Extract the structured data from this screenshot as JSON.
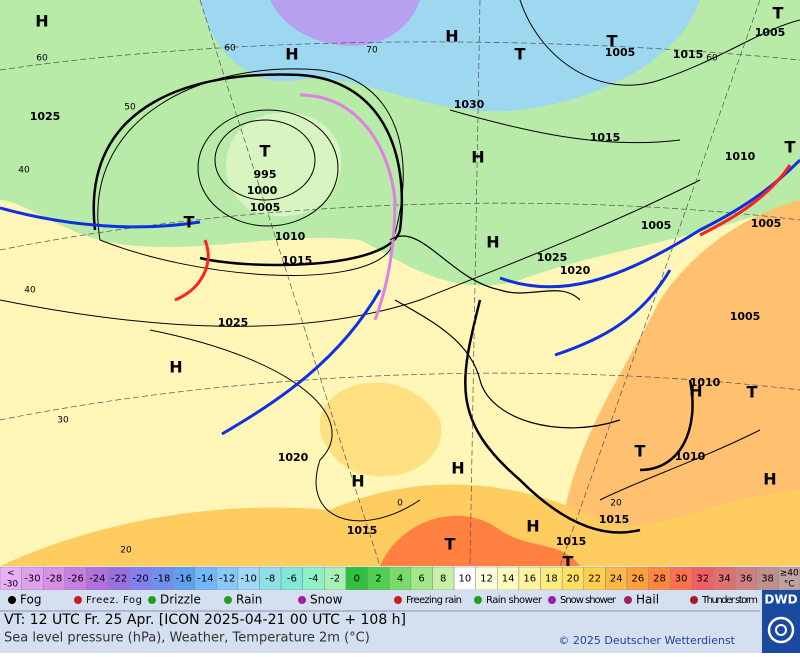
{
  "map": {
    "isobar_labels": [
      "1025",
      "995",
      "1000",
      "1005",
      "1010",
      "1015",
      "1025",
      "1030",
      "1005",
      "1015",
      "1005",
      "1015",
      "1010",
      "1005",
      "1005",
      "1025",
      "1020",
      "1005",
      "1010",
      "1010",
      "1020",
      "1015",
      "1015",
      "1015"
    ],
    "temperature_labels": [
      "60",
      "50",
      "40",
      "40",
      "30",
      "20",
      "60",
      "70",
      "60",
      "20",
      "0"
    ],
    "highs": [
      "H",
      "H",
      "H",
      "H",
      "H",
      "H",
      "H",
      "H",
      "H",
      "H",
      "H"
    ],
    "lows": [
      "T",
      "T",
      "T",
      "T",
      "T",
      "T",
      "T",
      "T",
      "T",
      "T"
    ]
  },
  "temperature_scale": {
    "below_label": [
      "<",
      "-30"
    ],
    "values": [
      -30,
      -28,
      -26,
      -24,
      -22,
      -20,
      -18,
      -16,
      -14,
      -12,
      -10,
      -8,
      -6,
      -4,
      -2,
      0,
      2,
      4,
      6,
      8,
      10,
      12,
      14,
      16,
      18,
      20,
      22,
      24,
      26,
      28,
      30,
      32,
      34,
      36,
      38
    ],
    "colors": [
      "#e0a0f0",
      "#d890e8",
      "#c880e0",
      "#b070e0",
      "#9a70e0",
      "#8080f0",
      "#7090f0",
      "#60a0f0",
      "#70b8f8",
      "#88c8f8",
      "#a0d8f8",
      "#90e0e8",
      "#80e8d8",
      "#90f0c8",
      "#a8f0b8",
      "#30c040",
      "#50d050",
      "#78dc68",
      "#a0e888",
      "#c8f0a8",
      "#ffffff",
      "#ffffe0",
      "#fffcc0",
      "#fff4a0",
      "#ffec80",
      "#ffe060",
      "#ffd050",
      "#ffb848",
      "#ffa040",
      "#ff8840",
      "#ff7050",
      "#f06060",
      "#e07070",
      "#d08080",
      "#c09090"
    ],
    "below_color": "#e8b0f8",
    "above_color": "#c0a0a0",
    "above_label": [
      "≥40",
      "°C"
    ]
  },
  "weather_legend": [
    "Fog",
    "Freez. Fog",
    "Drizzle",
    "Rain",
    "Snow",
    "Freezing rain",
    "Rain shower",
    "Snow shower",
    "Hail",
    "Thunder storm"
  ],
  "footer": {
    "valid_time": "VT: 12 UTC Fr.  25 Apr. [ICON 2025-04-21  00 UTC + 108 h]",
    "description": "Sea level pressure (hPa), Weather, Temperature 2m (°C)",
    "copyright": "© 2025 Deutscher Wetterdienst",
    "logo": "DWD"
  }
}
